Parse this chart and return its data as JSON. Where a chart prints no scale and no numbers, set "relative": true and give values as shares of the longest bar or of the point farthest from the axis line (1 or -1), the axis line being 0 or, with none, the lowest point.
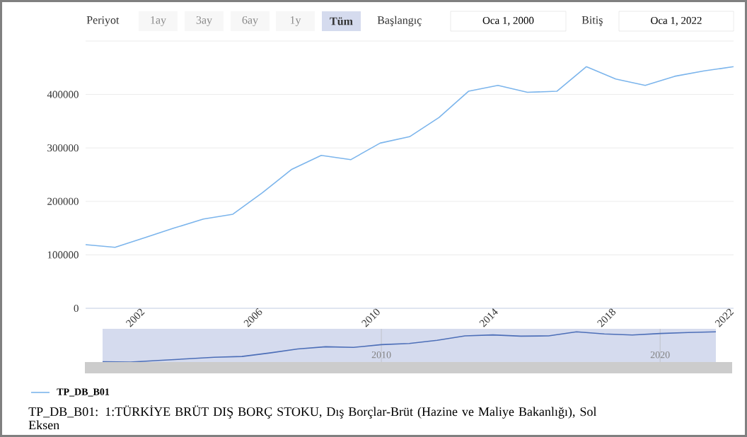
{
  "chart_data": [
    {
      "type": "line",
      "x": [
        2000,
        2001,
        2002,
        2003,
        2004,
        2005,
        2006,
        2007,
        2008,
        2009,
        2010,
        2011,
        2012,
        2013,
        2014,
        2015,
        2016,
        2017,
        2018,
        2019,
        2020,
        2021,
        2022
      ],
      "series": [
        {
          "name": "TP_DB_B01",
          "color": "#7cb5ec",
          "values": [
            119000,
            114000,
            132000,
            150000,
            167000,
            176000,
            216000,
            260000,
            286000,
            278000,
            309000,
            321000,
            357000,
            406000,
            417000,
            404000,
            406000,
            452000,
            429000,
            417000,
            434000,
            444000,
            452000
          ]
        }
      ],
      "xlim": [
        2000,
        2022
      ],
      "xticks": [
        2002,
        2006,
        2010,
        2014,
        2018,
        2022
      ],
      "ylim": [
        0,
        500000
      ],
      "yticks": [
        0,
        100000,
        200000,
        300000,
        400000,
        {
          "value": 500000,
          "label": null
        }
      ],
      "grid": "y",
      "legend": "bottom left",
      "annotations": [
        "Periyot",
        "1ay",
        "3ay",
        "6ay",
        "1y",
        "Tüm",
        "Başlangıç",
        "Oca 1, 2000",
        "Bitiş",
        "Oca 1, 2022",
        "TP_DB_B01: 1:TÜRKİYE BRÜT DIŞ BORÇ STOKU, Dış Borçlar-Brüt (Hazine ve Maliye Bakanlığı), Sol Eksen"
      ]
    },
    {
      "type": "line",
      "relative": true,
      "x": [
        2000,
        2001,
        2002,
        2003,
        2004,
        2005,
        2006,
        2007,
        2008,
        2009,
        2010,
        2011,
        2012,
        2013,
        2014,
        2015,
        2016,
        2017,
        2018,
        2019,
        2020,
        2021,
        2022
      ],
      "series": [
        {
          "color": "#4d6fb8",
          "values": [
            0.013,
            0,
            0.052,
            0.105,
            0.157,
            0.184,
            0.301,
            0.433,
            0.507,
            0.485,
            0.577,
            0.613,
            0.718,
            0.865,
            0.898,
            0.858,
            0.865,
            1,
            0.93,
            0.895,
            0.946,
            0.976,
            1
          ]
        }
      ],
      "xlim": [
        2000,
        2022
      ],
      "xticks": [
        2010,
        2020
      ],
      "tick_labels": "x",
      "grid": "x"
    }
  ]
}
